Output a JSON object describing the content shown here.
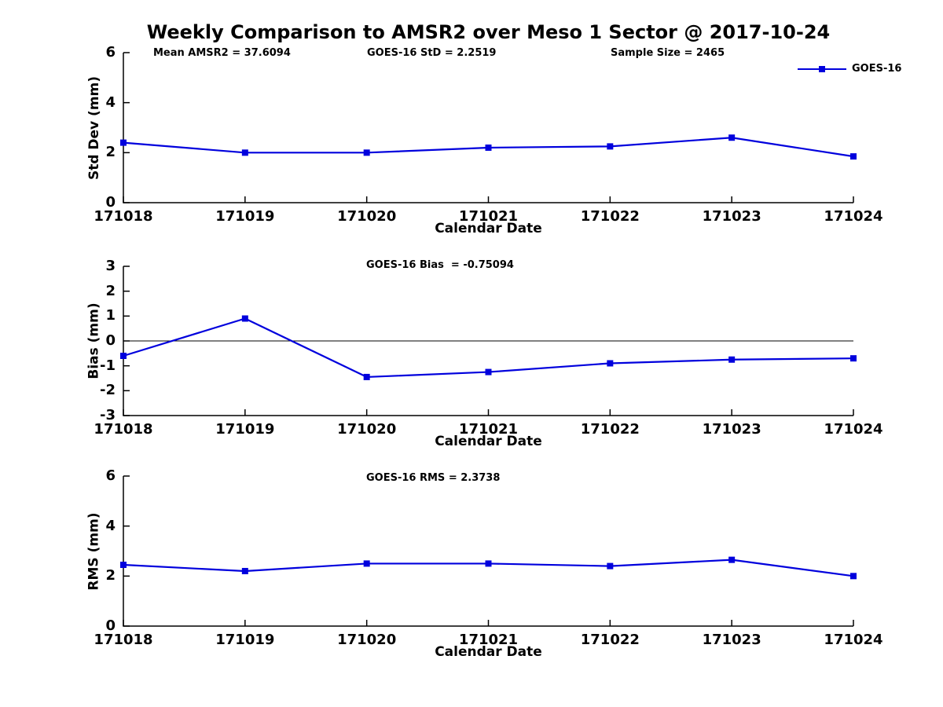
{
  "style": {
    "line_color": "#0000dd",
    "axis_color": "#000000",
    "text_color": "#000000",
    "background": "#ffffff"
  },
  "title": "Weekly Comparison to AMSR2 over Meso 1 Sector @ 2017-10-24",
  "legend": {
    "label": "GOES-16",
    "position": "top-right"
  },
  "chart_data": [
    {
      "type": "line",
      "series_name": "GOES-16",
      "categories": [
        "171018",
        "171019",
        "171020",
        "171021",
        "171022",
        "171023",
        "171024"
      ],
      "values": [
        2.4,
        2.0,
        2.0,
        2.2,
        2.25,
        2.6,
        1.85
      ],
      "xlabel": "Calendar Date",
      "ylabel": "Std Dev (mm)",
      "ylim": [
        0,
        6
      ],
      "yticks": [
        0,
        2,
        4,
        6
      ],
      "zero_line": false,
      "grid": false,
      "marker": "square",
      "annotations": [
        "Mean AMSR2 = 37.6094",
        "GOES-16 StD = 2.2519",
        "Sample Size = 2465"
      ],
      "legend_entries": [
        "GOES-16"
      ],
      "legend_position": "top-right"
    },
    {
      "type": "line",
      "series_name": "GOES-16",
      "categories": [
        "171018",
        "171019",
        "171020",
        "171021",
        "171022",
        "171023",
        "171024"
      ],
      "values": [
        -0.6,
        0.9,
        -1.45,
        -1.25,
        -0.9,
        -0.75,
        -0.7
      ],
      "xlabel": "Calendar Date",
      "ylabel": "Bias (mm)",
      "ylim": [
        -3,
        3
      ],
      "yticks": [
        -3,
        -2,
        -1,
        0,
        1,
        2,
        3
      ],
      "zero_line": true,
      "grid": false,
      "marker": "square",
      "annotations": [
        "GOES-16 Bias  = -0.75094"
      ],
      "legend_entries": [],
      "legend_position": "none"
    },
    {
      "type": "line",
      "series_name": "GOES-16",
      "categories": [
        "171018",
        "171019",
        "171020",
        "171021",
        "171022",
        "171023",
        "171024"
      ],
      "values": [
        2.45,
        2.2,
        2.5,
        2.5,
        2.4,
        2.65,
        2.0
      ],
      "xlabel": "Calendar Date",
      "ylabel": "RMS (mm)",
      "ylim": [
        0,
        6
      ],
      "yticks": [
        0,
        2,
        4,
        6
      ],
      "zero_line": false,
      "grid": false,
      "marker": "square",
      "annotations": [
        "GOES-16 RMS = 2.3738"
      ],
      "legend_entries": [],
      "legend_position": "none"
    }
  ]
}
